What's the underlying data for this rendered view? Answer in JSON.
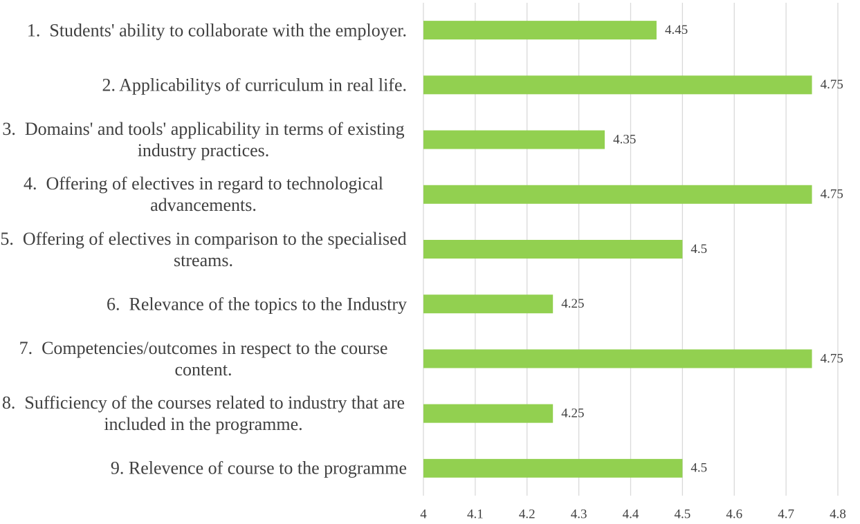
{
  "chart_data": {
    "type": "bar",
    "orientation": "horizontal",
    "categories": [
      "1.  Students' ability to collaborate with the employer.",
      "2. Applicabilitys of curriculum in real life.",
      "3.  Domains' and tools' applicability in terms of existing industry practices.",
      "4.  Offering of electives in regard to technological advancements.",
      "5.  Offering of electives in comparison to the specialised streams.",
      "6.  Relevance of the topics to the Industry",
      "7.  Competencies/outcomes in respect to the course content.",
      "8.  Sufficiency of the courses related to industry that are included in the programme.",
      "9. Relevence of course to the programme"
    ],
    "values": [
      4.45,
      4.75,
      4.35,
      4.75,
      4.5,
      4.25,
      4.75,
      4.25,
      4.5
    ],
    "color": "#92d050",
    "xlim": [
      4,
      4.8
    ],
    "xticks": [
      4,
      4.1,
      4.2,
      4.3,
      4.4,
      4.5,
      4.6,
      4.7,
      4.8
    ],
    "grid": true
  }
}
